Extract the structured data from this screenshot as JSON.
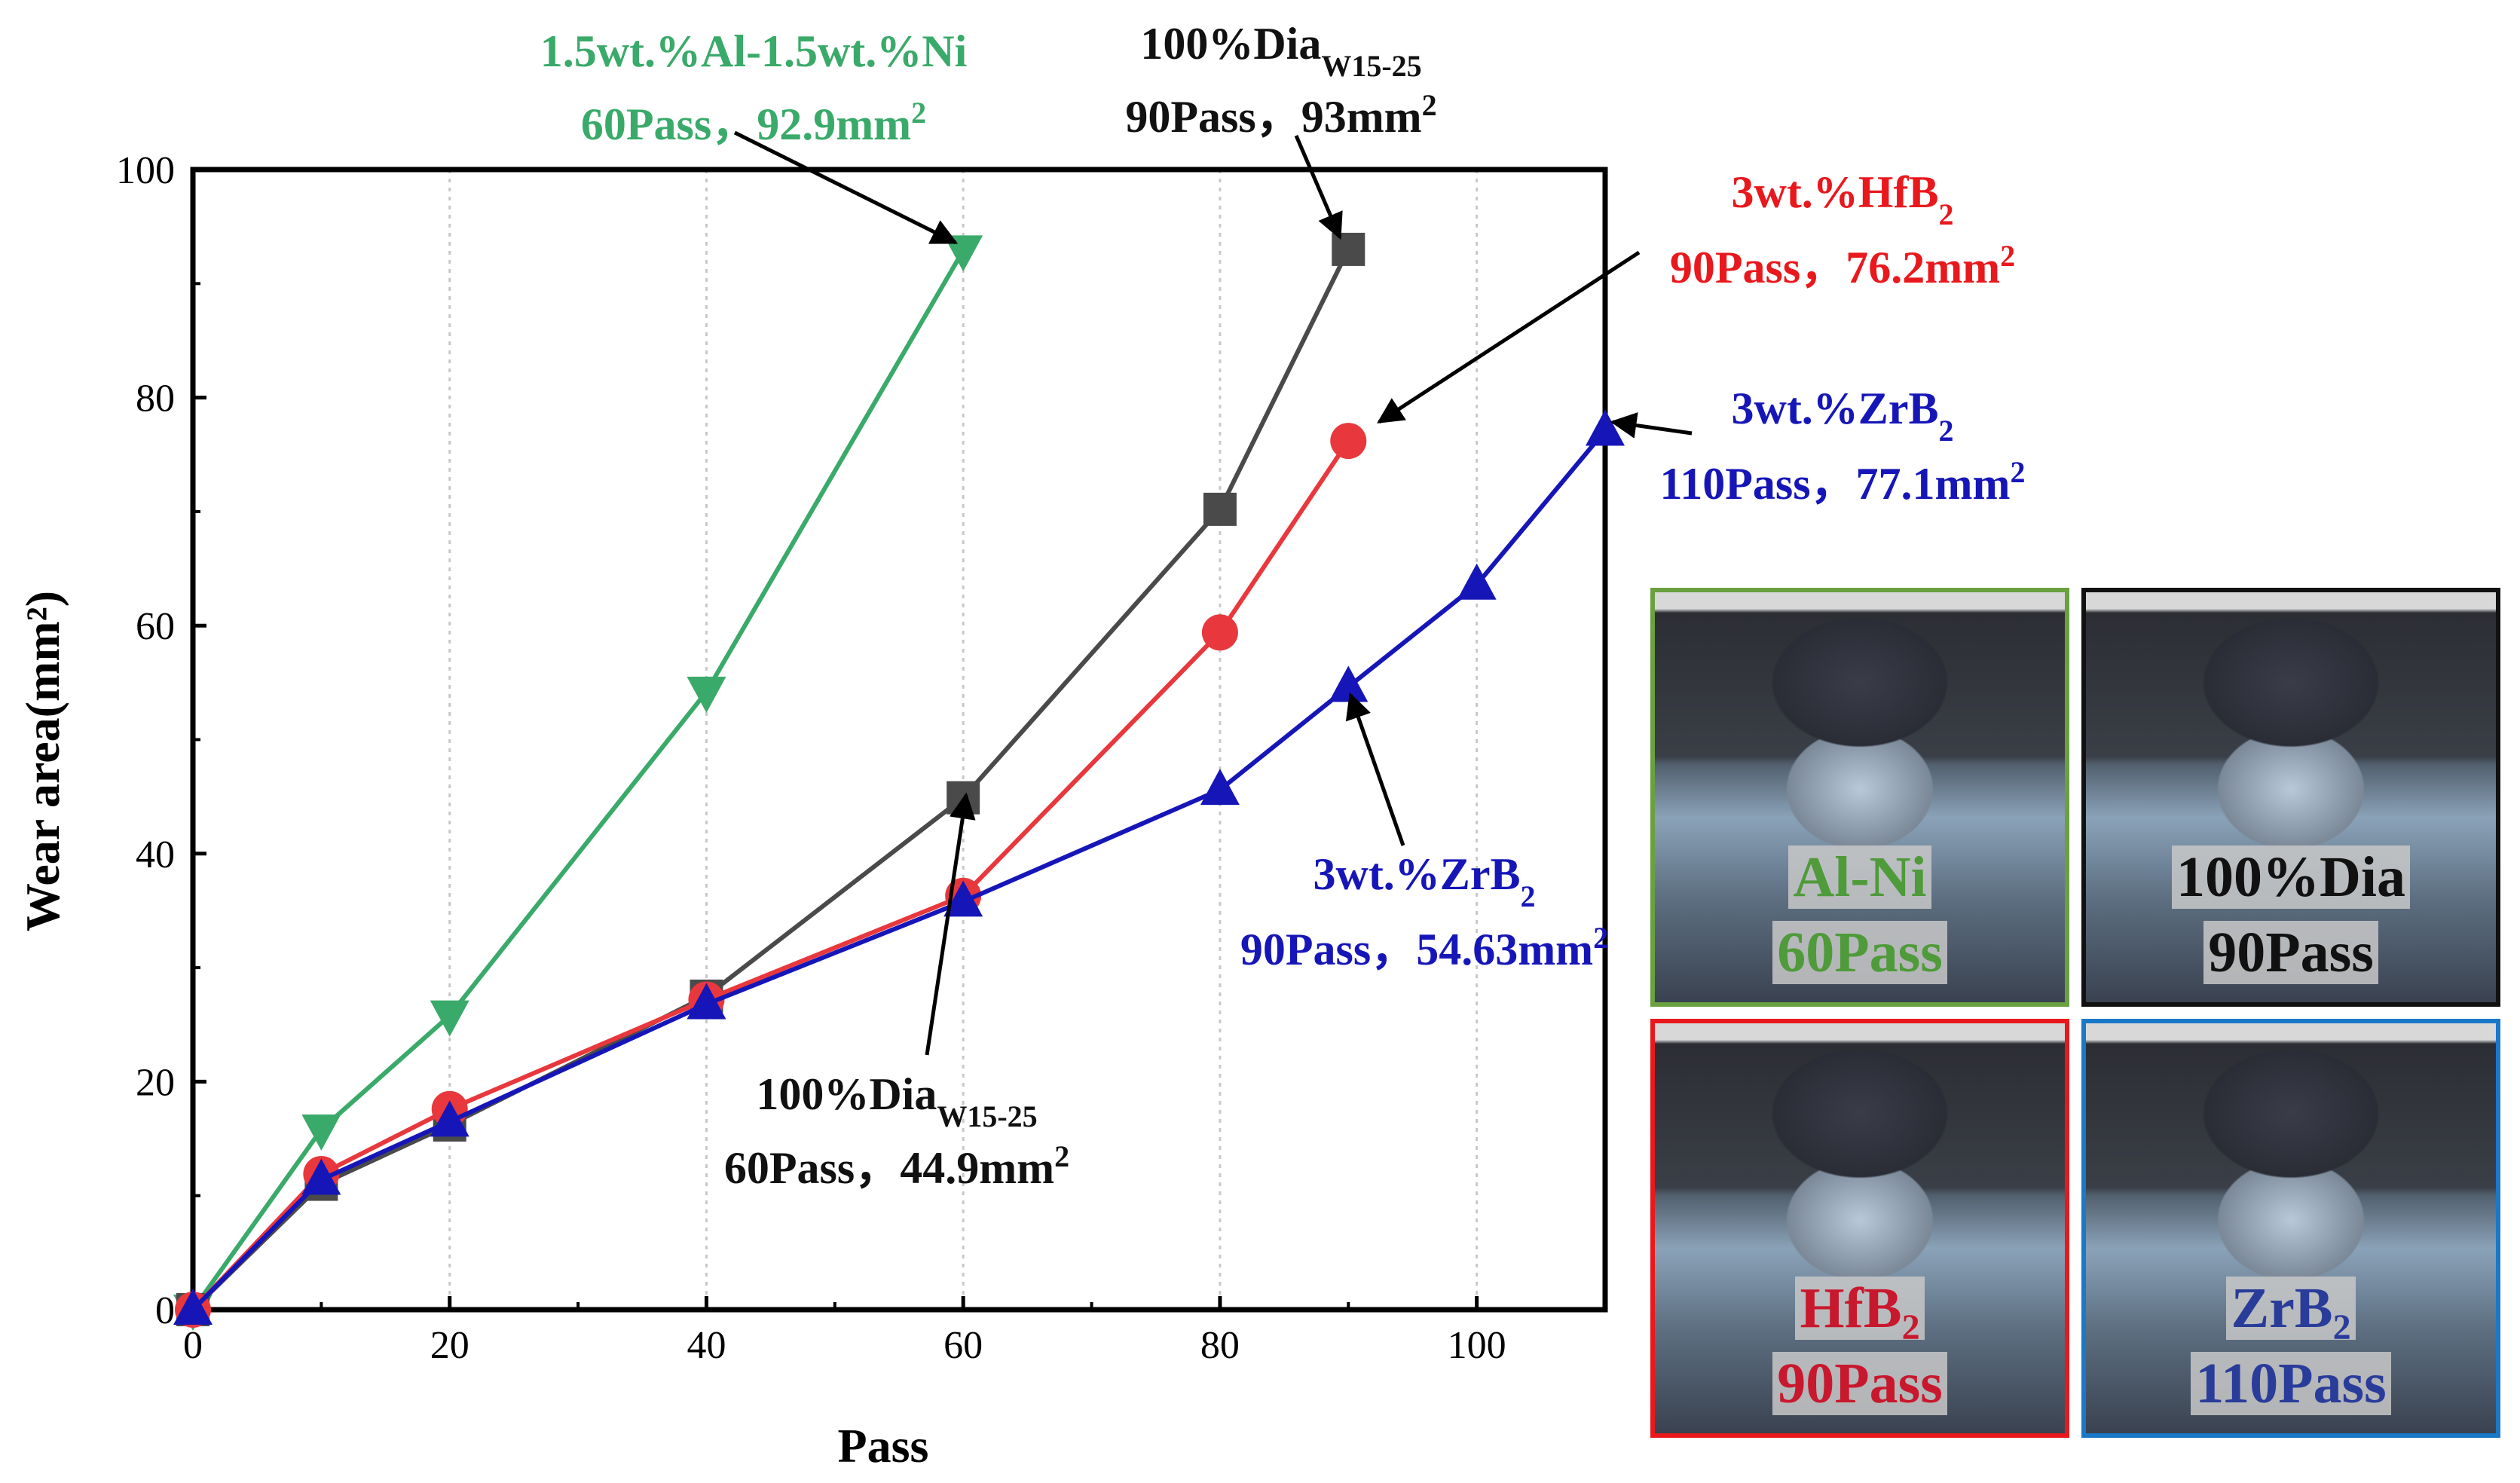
{
  "chart_data": {
    "type": "line",
    "xlabel": "Pass",
    "ylabel": "Wear area(mm²)",
    "xlim": [
      0,
      110
    ],
    "ylim": [
      0,
      100
    ],
    "xticks": [
      "0",
      "20",
      "40",
      "60",
      "80",
      "100"
    ],
    "yticks": [
      "0",
      "20",
      "40",
      "60",
      "80",
      "100"
    ],
    "grid": "vertical dotted",
    "series": [
      {
        "color": "#3aaa6a",
        "marker": "triangle-down",
        "x": [
          0,
          10,
          20,
          40,
          60
        ],
        "y": [
          0,
          15.8,
          25.8,
          54.2,
          92.9
        ]
      },
      {
        "color": "#4a4a4a",
        "marker": "square",
        "x": [
          0,
          10,
          20,
          40,
          60,
          80,
          90
        ],
        "y": [
          0,
          11,
          16.2,
          27.5,
          44.9,
          70.2,
          93
        ]
      },
      {
        "color": "#e8383d",
        "marker": "circle",
        "x": [
          0,
          10,
          20,
          40,
          60,
          80,
          90
        ],
        "y": [
          0,
          11.9,
          17.6,
          27.2,
          36.3,
          59.4,
          76.2
        ]
      },
      {
        "color": "#1616b8",
        "marker": "triangle-up",
        "x": [
          0,
          10,
          20,
          40,
          60,
          80,
          90,
          100,
          110
        ],
        "y": [
          0,
          11.4,
          16.5,
          26.8,
          35.8,
          45.6,
          54.63,
          63.6,
          77.1
        ]
      }
    ],
    "annotations": [
      {
        "color": "#3aaa6a",
        "line1": "1.5wt.%Al-1.5wt.%Ni",
        "line2": "60Pass，92.9mm",
        "sup2": "2",
        "point": [
          60,
          92.9
        ]
      },
      {
        "color": "#111111",
        "line1": "100%Dia",
        "sub1": "W15-25",
        "line2": "90Pass，93mm",
        "sup2": "2",
        "point": [
          90,
          93
        ]
      },
      {
        "color": "#e8181d",
        "line1": "3wt.%HfB",
        "sub1": "2",
        "line2": "90Pass，76.2mm",
        "sup2": "2",
        "point": [
          90,
          76.2
        ]
      },
      {
        "color": "#1616b8",
        "line1": "3wt.%ZrB",
        "sub1": "2",
        "line2": "110Pass，77.1mm",
        "sup2": "2",
        "point": [
          110,
          77.1
        ]
      },
      {
        "color": "#1616b8",
        "line1": "3wt.%ZrB",
        "sub1": "2",
        "line2": "90Pass，54.63mm",
        "sup2": "2",
        "point": [
          90,
          54.63
        ]
      },
      {
        "color": "#111111",
        "line1": "100%Dia",
        "sub1": "W15-25",
        "line2": "60Pass，44.9mm",
        "sup2": "2",
        "point": [
          60,
          44.9
        ]
      }
    ]
  },
  "photo_panels": [
    {
      "name": "Al-Ni",
      "pass": "60Pass",
      "border_color": "#6aa040",
      "text_color": "#4f9a3a"
    },
    {
      "name": "100%Dia",
      "pass": "90Pass",
      "border_color": "#111111",
      "text_color": "#111111"
    },
    {
      "name": "HfB",
      "sub": "2",
      "pass": "90Pass",
      "border_color": "#e8181d",
      "text_color": "#c8182d"
    },
    {
      "name": "ZrB",
      "sub": "2",
      "pass": "110Pass",
      "border_color": "#1a78c8",
      "text_color": "#2a3c9a"
    }
  ]
}
